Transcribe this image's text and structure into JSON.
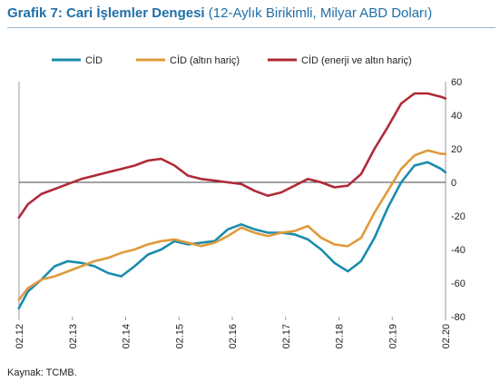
{
  "title": {
    "bold": "Grafik 7: Cari İşlemler Dengesi",
    "normal": " (12-Aylık Birikimli, Milyar ABD Doları)"
  },
  "source": "Kaynak: TCMB.",
  "colors": {
    "cid": "#1a8cad",
    "cid_altin": "#e09a3c",
    "cid_enerji": "#b02a36"
  },
  "chart_data": {
    "type": "line",
    "title": "Cari İşlemler Dengesi",
    "xlabel": "",
    "ylabel": "",
    "x_ticks": [
      "02.12",
      "02.13",
      "02.14",
      "02.15",
      "02.16",
      "02.17",
      "02.18",
      "02.19",
      "02.20"
    ],
    "y_ticks": [
      60,
      40,
      20,
      0,
      -20,
      -40,
      -60,
      -80
    ],
    "ylim": [
      -80,
      60
    ],
    "xlim": [
      2012.083,
      2020.083
    ],
    "legend_position": "top",
    "grid": false,
    "series": [
      {
        "name": "CİD",
        "color": "#1a8cad",
        "x": [
          2012.08,
          2012.25,
          2012.5,
          2012.75,
          2013.0,
          2013.25,
          2013.5,
          2013.75,
          2014.0,
          2014.25,
          2014.5,
          2014.75,
          2015.0,
          2015.25,
          2015.5,
          2015.75,
          2016.0,
          2016.25,
          2016.5,
          2016.75,
          2017.0,
          2017.25,
          2017.5,
          2017.75,
          2018.0,
          2018.25,
          2018.5,
          2018.75,
          2019.0,
          2019.25,
          2019.5,
          2019.75,
          2020.0,
          2020.08
        ],
        "values": [
          -75,
          -65,
          -58,
          -50,
          -47,
          -48,
          -50,
          -54,
          -56,
          -50,
          -43,
          -40,
          -35,
          -37,
          -36,
          -35,
          -28,
          -25,
          -28,
          -30,
          -30,
          -31,
          -34,
          -40,
          -48,
          -53,
          -47,
          -33,
          -15,
          0,
          10,
          12,
          8,
          6
        ]
      },
      {
        "name": "CİD (altın hariç)",
        "color": "#e09a3c",
        "x": [
          2012.08,
          2012.25,
          2012.5,
          2012.75,
          2013.0,
          2013.25,
          2013.5,
          2013.75,
          2014.0,
          2014.25,
          2014.5,
          2014.75,
          2015.0,
          2015.25,
          2015.5,
          2015.75,
          2016.0,
          2016.25,
          2016.5,
          2016.75,
          2017.0,
          2017.25,
          2017.5,
          2017.75,
          2018.0,
          2018.25,
          2018.5,
          2018.75,
          2019.0,
          2019.25,
          2019.5,
          2019.75,
          2020.0,
          2020.08
        ],
        "values": [
          -70,
          -63,
          -58,
          -56,
          -53,
          -50,
          -47,
          -45,
          -42,
          -40,
          -37,
          -35,
          -34,
          -36,
          -38,
          -36,
          -32,
          -27,
          -30,
          -32,
          -30,
          -29,
          -26,
          -33,
          -37,
          -38,
          -33,
          -18,
          -5,
          8,
          16,
          19,
          17,
          17
        ]
      },
      {
        "name": "CİD (enerji ve altın hariç)",
        "color": "#b02a36",
        "x": [
          2012.08,
          2012.25,
          2012.5,
          2012.75,
          2013.0,
          2013.25,
          2013.5,
          2013.75,
          2014.0,
          2014.25,
          2014.5,
          2014.75,
          2015.0,
          2015.25,
          2015.5,
          2015.75,
          2016.0,
          2016.25,
          2016.5,
          2016.75,
          2017.0,
          2017.25,
          2017.5,
          2017.75,
          2018.0,
          2018.25,
          2018.5,
          2018.75,
          2019.0,
          2019.25,
          2019.5,
          2019.75,
          2020.0,
          2020.08
        ],
        "values": [
          -21,
          -13,
          -7,
          -4,
          -1,
          2,
          4,
          6,
          8,
          10,
          13,
          14,
          10,
          4,
          2,
          1,
          0,
          -1,
          -5,
          -8,
          -6,
          -2,
          2,
          0,
          -3,
          -2,
          5,
          20,
          33,
          47,
          53,
          53,
          51,
          50
        ]
      }
    ]
  }
}
